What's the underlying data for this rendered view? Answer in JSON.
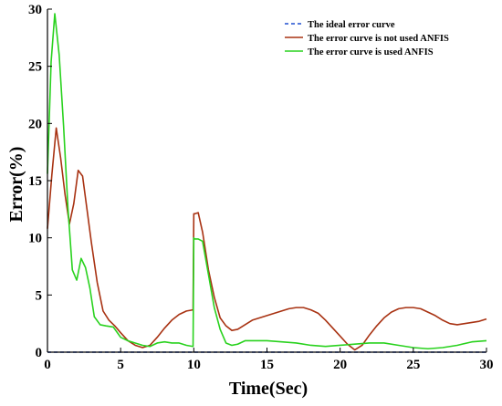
{
  "chart_data": {
    "type": "line",
    "title": "",
    "xlabel": "Time(Sec)",
    "ylabel": "Error(%)",
    "xlim": [
      0,
      30
    ],
    "ylim": [
      0,
      30
    ],
    "xticks": [
      0,
      5,
      10,
      15,
      20,
      25,
      30
    ],
    "yticks": [
      0,
      5,
      10,
      15,
      20,
      25,
      30
    ],
    "xtick_labels": [
      "0",
      "5",
      "10",
      "15",
      "20",
      "25",
      "30"
    ],
    "ytick_labels": [
      "0",
      "5",
      "10",
      "15",
      "20",
      "25",
      "30"
    ],
    "grid": false,
    "legend_position": "top-right",
    "series": [
      {
        "name": "The ideal error curve",
        "color": "#1f4fd1",
        "style": "dashed",
        "x": [
          0,
          30
        ],
        "y": [
          0,
          0
        ]
      },
      {
        "name": "The error curve is not used ANFIS",
        "color": "#a83212",
        "style": "solid",
        "x": [
          0,
          0.3,
          0.6,
          0.9,
          1.2,
          1.5,
          1.8,
          2.1,
          2.4,
          2.7,
          3.0,
          3.4,
          3.8,
          4.2,
          4.6,
          5.0,
          5.5,
          6.0,
          6.5,
          7.0,
          7.5,
          8.0,
          8.5,
          9.0,
          9.5,
          9.95,
          10.0,
          10.05,
          10.3,
          10.6,
          11.0,
          11.4,
          11.8,
          12.2,
          12.6,
          13.0,
          13.5,
          14.0,
          14.5,
          15.0,
          15.5,
          16.0,
          16.5,
          17.0,
          17.5,
          18.0,
          18.5,
          19.0,
          19.5,
          20.0,
          20.5,
          21.0,
          21.5,
          22.0,
          22.5,
          23.0,
          23.5,
          24.0,
          24.5,
          25.0,
          25.5,
          26.0,
          26.5,
          27.0,
          27.5,
          28.0,
          28.5,
          29.0,
          29.5,
          30.0
        ],
        "y": [
          10.8,
          15.5,
          19.6,
          17.0,
          13.8,
          11.2,
          13.0,
          15.9,
          15.4,
          12.5,
          9.6,
          6.1,
          3.6,
          2.8,
          2.3,
          1.7,
          1.0,
          0.6,
          0.4,
          0.6,
          1.3,
          2.1,
          2.8,
          3.3,
          3.6,
          3.7,
          12.1,
          12.1,
          12.2,
          10.5,
          7.2,
          4.8,
          3.0,
          2.3,
          1.9,
          2.0,
          2.4,
          2.8,
          3.0,
          3.2,
          3.4,
          3.6,
          3.8,
          3.9,
          3.9,
          3.7,
          3.4,
          2.8,
          2.1,
          1.4,
          0.7,
          0.2,
          0.6,
          1.5,
          2.3,
          3.0,
          3.5,
          3.8,
          3.9,
          3.9,
          3.8,
          3.5,
          3.2,
          2.8,
          2.5,
          2.4,
          2.5,
          2.6,
          2.7,
          2.9
        ]
      },
      {
        "name": "The error curve is used ANFIS",
        "color": "#29d21e",
        "style": "solid",
        "x": [
          0,
          0.25,
          0.5,
          0.8,
          1.1,
          1.4,
          1.7,
          2.0,
          2.3,
          2.6,
          2.9,
          3.2,
          3.6,
          4.0,
          4.5,
          5.0,
          5.5,
          6.0,
          6.5,
          7.0,
          7.5,
          8.0,
          8.5,
          9.0,
          9.5,
          9.95,
          10.0,
          10.05,
          10.3,
          10.6,
          11.0,
          11.4,
          11.8,
          12.2,
          12.6,
          13.0,
          13.5,
          14.0,
          15.0,
          16.0,
          17.0,
          18.0,
          19.0,
          20.0,
          21.0,
          22.0,
          23.0,
          24.0,
          25.0,
          26.0,
          27.0,
          28.0,
          29.0,
          30.0
        ],
        "y": [
          15.6,
          25.4,
          29.6,
          26.0,
          19.8,
          12.6,
          7.2,
          6.3,
          8.2,
          7.4,
          5.6,
          3.1,
          2.4,
          2.3,
          2.2,
          1.3,
          1.0,
          0.8,
          0.6,
          0.5,
          0.8,
          0.9,
          0.8,
          0.8,
          0.6,
          0.5,
          10.0,
          9.9,
          9.9,
          9.7,
          6.8,
          3.9,
          2.0,
          0.8,
          0.6,
          0.7,
          1.0,
          1.0,
          1.0,
          0.9,
          0.8,
          0.6,
          0.5,
          0.6,
          0.7,
          0.8,
          0.8,
          0.6,
          0.4,
          0.3,
          0.4,
          0.6,
          0.9,
          1.0
        ]
      }
    ]
  }
}
